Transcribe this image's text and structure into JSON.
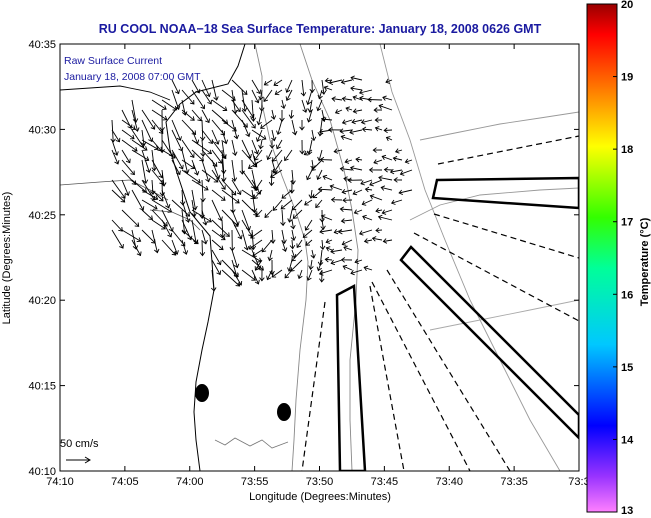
{
  "chart_data": {
    "type": "vector-field-map",
    "title": "RU COOL  NOAA−18  Sea Surface Temperature:  January 18, 2008 0626 GMT",
    "annotation_lines": [
      "Raw Surface Current",
      "January 18, 2008 07:00 GMT"
    ],
    "xlabel": "Longitude (Degrees:Minutes)",
    "ylabel": "Latitude (Degrees:Minutes)",
    "x_ticks": [
      "74:10",
      "74:05",
      "74:00",
      "73:55",
      "73:50",
      "73:45",
      "73:40",
      "73:35",
      "73:3"
    ],
    "y_ticks": [
      "40:35",
      "40:30",
      "40:25",
      "40:20",
      "40:15",
      "40:10"
    ],
    "x_range_min_west": [
      10,
      30
    ],
    "y_range_min": [
      10,
      35
    ],
    "scale_label": "50 cm/s",
    "colorbar": {
      "label": "Temperature (°C)",
      "range": [
        13,
        20
      ],
      "ticks": [
        "20",
        "19",
        "18",
        "17",
        "16",
        "15",
        "14",
        "13"
      ]
    }
  }
}
